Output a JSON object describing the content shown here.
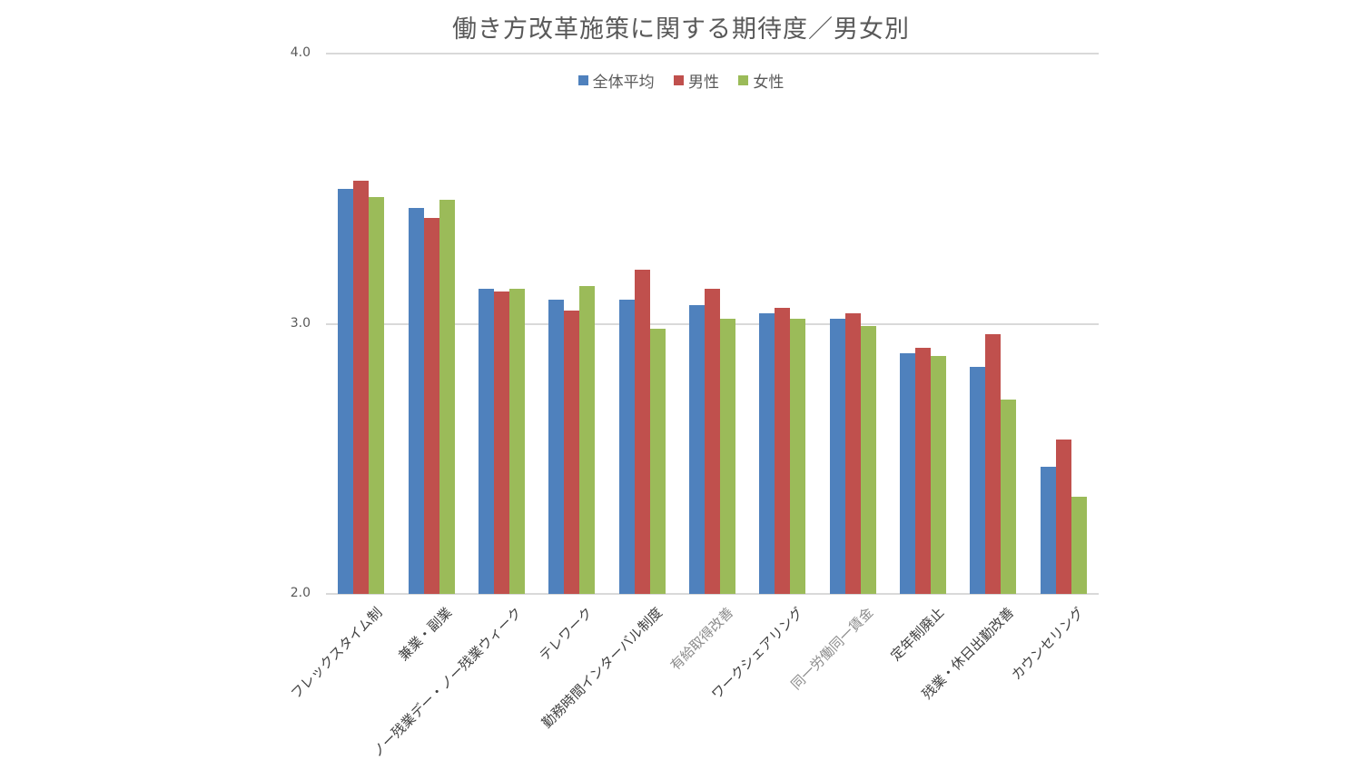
{
  "chart_data": {
    "type": "bar",
    "title": "働き方改革施策に関する期待度／男女別",
    "xlabel": "",
    "ylabel": "",
    "ylim": [
      2.0,
      4.0
    ],
    "yticks": [
      "2.0",
      "3.0",
      "4.0"
    ],
    "grid": true,
    "legend_position": "top",
    "categories": [
      "フレックスタイム制",
      "兼業・副業",
      "ノー残業デー・ノー残業ウィーク",
      "テレワーク",
      "勤務時間インターバル制度",
      "有給取得改善",
      "ワークシェアリング",
      "同一労働同一賃金",
      "定年制廃止",
      "残業・休日出勤改善",
      "カウンセリング"
    ],
    "series": [
      {
        "name": "全体平均",
        "color": "#4F81BD",
        "values": [
          3.5,
          3.43,
          3.13,
          3.09,
          3.09,
          3.07,
          3.04,
          3.02,
          2.89,
          2.84,
          2.47
        ]
      },
      {
        "name": "男性",
        "color": "#C0504D",
        "values": [
          3.53,
          3.39,
          3.12,
          3.05,
          3.2,
          3.13,
          3.06,
          3.04,
          2.91,
          2.96,
          2.57
        ]
      },
      {
        "name": "女性",
        "color": "#9BBB59",
        "values": [
          3.47,
          3.46,
          3.13,
          3.14,
          2.98,
          3.02,
          3.02,
          2.99,
          2.88,
          2.72,
          2.36
        ]
      }
    ],
    "light_label_indices": [
      5,
      7
    ]
  }
}
